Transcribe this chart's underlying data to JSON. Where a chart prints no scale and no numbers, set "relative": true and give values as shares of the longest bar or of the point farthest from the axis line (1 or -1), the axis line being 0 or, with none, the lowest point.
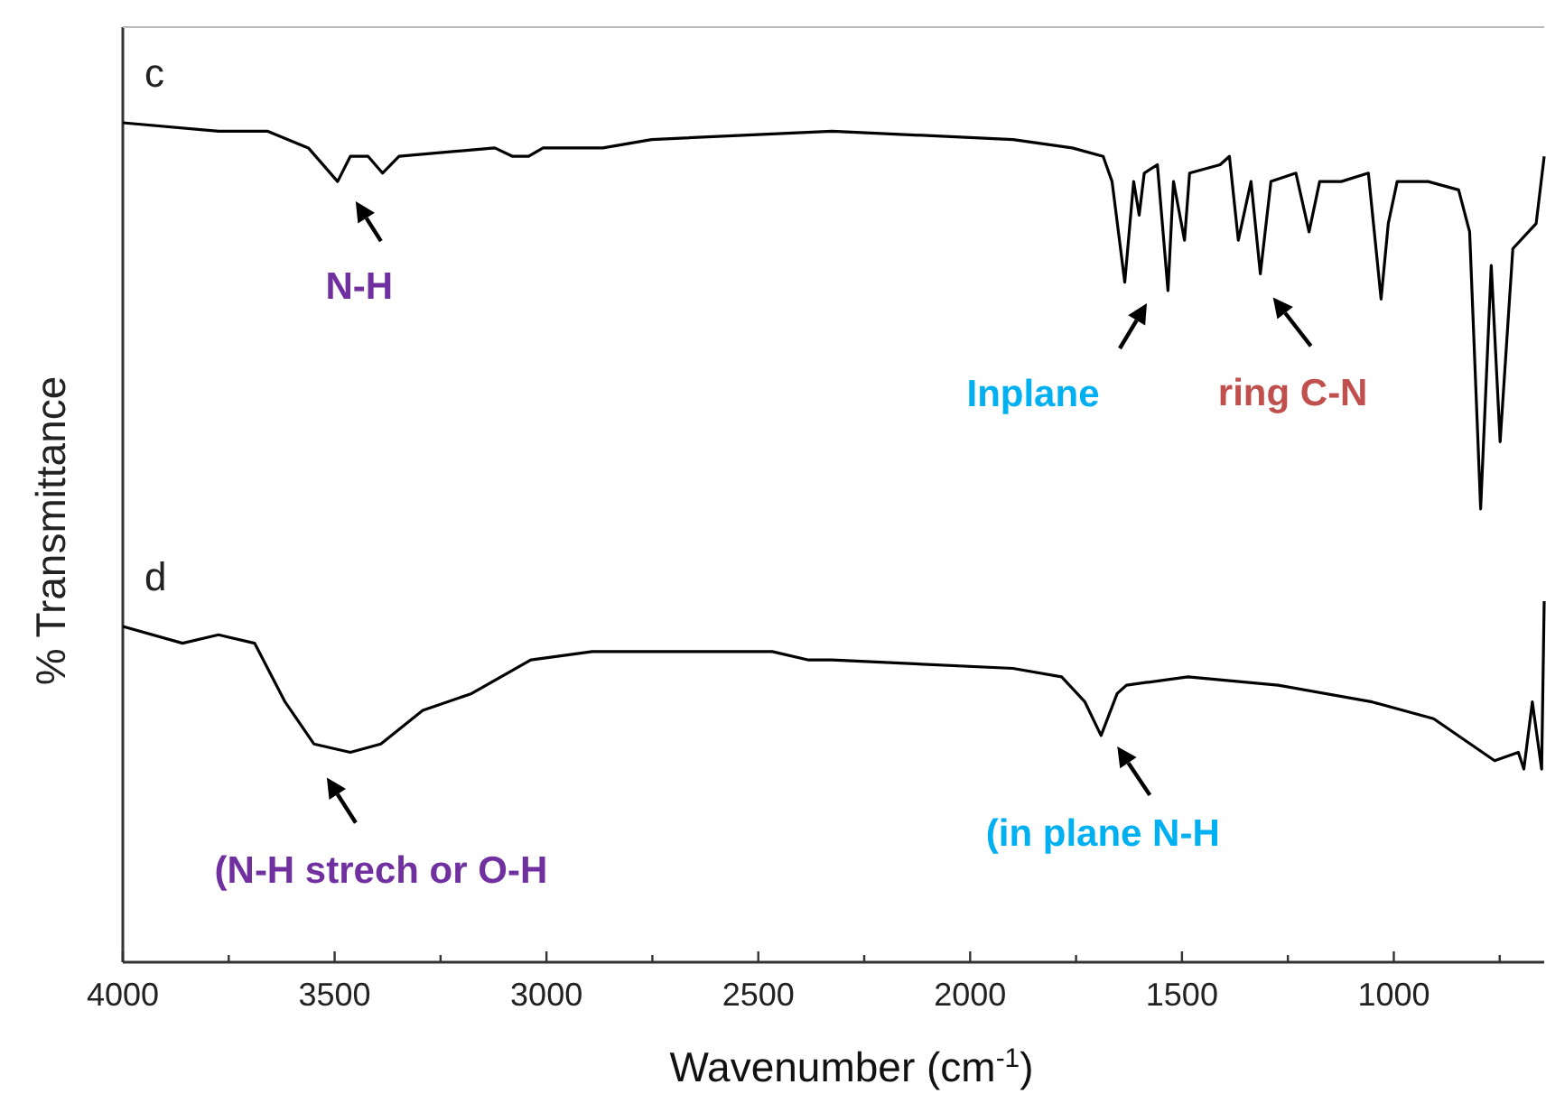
{
  "chart_data": {
    "type": "line",
    "relative": true,
    "xlabel": "Wavenumber (cm$^{-1}$)",
    "ylabel": "% Transmittance",
    "xlim": [
      4000,
      645
    ],
    "xticks": [
      4000,
      {
        "value": 3750,
        "label": null
      },
      3500,
      {
        "value": 3250,
        "label": null
      },
      3000,
      {
        "value": 2750,
        "label": null
      },
      2500,
      {
        "value": 2250,
        "label": null
      },
      2000,
      {
        "value": 1750,
        "label": null
      },
      1500,
      {
        "value": 1250,
        "label": null
      },
      1000,
      {
        "value": 750,
        "label": null
      }
    ],
    "legend": false,
    "grid": false,
    "marker": "none",
    "line_style": "solid",
    "series": [
      {
        "name": "c",
        "color": "#000000",
        "x": [
          4000,
          3774,
          3659,
          3562,
          3493,
          3463,
          3421,
          3387,
          3348,
          3122,
          3080,
          3042,
          3008,
          2867,
          2752,
          2326,
          1899,
          1759,
          1686,
          1665,
          1635,
          1614,
          1601,
          1589,
          1558,
          1533,
          1520,
          1494,
          1482,
          1410,
          1388,
          1367,
          1337,
          1315,
          1290,
          1231,
          1200,
          1175,
          1124,
          1060,
          1030,
          1013,
          992,
          919,
          847,
          821,
          795,
          770,
          749,
          719,
          664,
          645
        ],
        "values": [
          1,
          0.99,
          0.99,
          0.97,
          0.93,
          0.96,
          0.96,
          0.94,
          0.96,
          0.97,
          0.96,
          0.96,
          0.97,
          0.97,
          0.98,
          0.99,
          0.98,
          0.97,
          0.96,
          0.93,
          0.81,
          0.93,
          0.89,
          0.94,
          0.95,
          0.8,
          0.93,
          0.86,
          0.94,
          0.95,
          0.96,
          0.86,
          0.93,
          0.82,
          0.93,
          0.94,
          0.87,
          0.93,
          0.93,
          0.94,
          0.79,
          0.88,
          0.93,
          0.93,
          0.92,
          0.87,
          0.54,
          0.83,
          0.62,
          0.85,
          0.88,
          0.96
        ]
      },
      {
        "name": "d",
        "color": "#000000",
        "x": [
          4000,
          3859,
          3774,
          3689,
          3617,
          3549,
          3463,
          3391,
          3292,
          3177,
          3037,
          2892,
          2752,
          2467,
          2381,
          2326,
          1899,
          1784,
          1729,
          1691,
          1653,
          1631,
          1486,
          1273,
          1051,
          906,
          762,
          706,
          693,
          673,
          651,
          645
        ],
        "values": [
          0.4,
          0.38,
          0.39,
          0.38,
          0.31,
          0.26,
          0.25,
          0.26,
          0.3,
          0.32,
          0.36,
          0.37,
          0.37,
          0.37,
          0.36,
          0.36,
          0.35,
          0.34,
          0.31,
          0.27,
          0.32,
          0.33,
          0.34,
          0.33,
          0.31,
          0.29,
          0.24,
          0.25,
          0.23,
          0.31,
          0.23,
          0.43
        ]
      }
    ],
    "annotations": [
      {
        "text": "N-H",
        "x": 3493,
        "y": 0.93
      },
      "Inplane",
      {
        "text": "ring C-N",
        "x": 1315,
        "y": 0.82
      },
      {
        "text": "(N-H strech or O-H",
        "x": 3463,
        "y": 0.25
      },
      {
        "text": "(in plane N-H",
        "x": 1691,
        "y": 0.27
      }
    ]
  }
}
